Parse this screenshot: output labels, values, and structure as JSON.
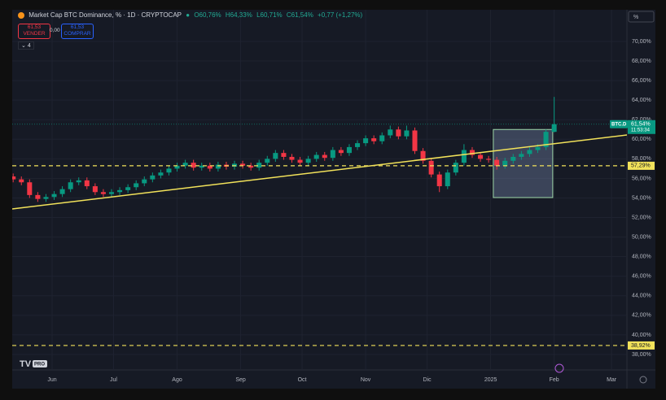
{
  "header": {
    "title": "Market Cap BTC Dominance, % · 1D · CRYPTOCAP",
    "open": "O60,76%",
    "high": "H64,33%",
    "low": "L60,71%",
    "close": "C61,54%",
    "change": "+0,77 (+1,27%)",
    "sell_price": "61,53",
    "sell_label": "VENDER",
    "spread": "0,00",
    "buy_price": "61,53",
    "buy_label": "COMPRAR",
    "indicators_count": "4",
    "scale_unit": "%",
    "logo": "PRO"
  },
  "chart_data": {
    "type": "candlestick",
    "x": [
      -19,
      -15,
      -11,
      -7,
      -3,
      1,
      5,
      9,
      13,
      17,
      21,
      25,
      29,
      33,
      37,
      41,
      45,
      49,
      53,
      57,
      61,
      65,
      69,
      73,
      77,
      81,
      85,
      89,
      93,
      97,
      101,
      105,
      109,
      113,
      117,
      121,
      125,
      129,
      133,
      137,
      141,
      145,
      149,
      153,
      157,
      161,
      165,
      169,
      173,
      177,
      181,
      185,
      189,
      193,
      197,
      201,
      205,
      209,
      213,
      217,
      221,
      225,
      229,
      233,
      237,
      241,
      245
    ],
    "open": [
      56.2,
      55.9,
      55.6,
      54.3,
      53.9,
      54.1,
      54.4,
      54.9,
      55.6,
      55.8,
      55.2,
      54.6,
      54.4,
      54.6,
      54.8,
      55.1,
      55.5,
      55.9,
      56.3,
      56.6,
      57.0,
      57.3,
      57.6,
      57.1,
      57.3,
      57.0,
      57.4,
      57.2,
      57.5,
      57.3,
      57.1,
      57.6,
      58.0,
      58.6,
      58.2,
      57.9,
      57.6,
      58.0,
      58.4,
      58.1,
      58.9,
      58.6,
      59.2,
      59.6,
      60.1,
      59.8,
      60.4,
      61.0,
      60.3,
      60.9,
      58.8,
      57.8,
      56.4,
      55.2,
      56.6,
      57.6,
      58.9,
      58.4,
      58.0,
      57.9,
      57.3,
      57.8,
      58.2,
      58.5,
      58.9,
      59.2,
      60.76
    ],
    "high": [
      56.5,
      56.2,
      55.9,
      54.6,
      54.4,
      54.7,
      55.2,
      55.9,
      56.1,
      56.1,
      55.5,
      54.9,
      54.9,
      55.1,
      55.4,
      55.8,
      56.2,
      56.6,
      56.9,
      57.3,
      57.6,
      57.9,
      57.9,
      57.6,
      57.6,
      57.7,
      57.7,
      57.8,
      57.8,
      57.6,
      57.9,
      58.3,
      58.9,
      58.9,
      58.5,
      58.2,
      58.3,
      58.7,
      58.7,
      59.2,
      59.2,
      59.5,
      59.9,
      60.4,
      60.4,
      60.7,
      61.4,
      61.3,
      61.4,
      61.2,
      59.1,
      58.1,
      56.7,
      56.9,
      57.9,
      59.5,
      59.2,
      58.7,
      58.3,
      58.2,
      58.1,
      58.5,
      58.8,
      59.2,
      59.5,
      61.0,
      64.33
    ],
    "low": [
      55.6,
      55.3,
      54.0,
      53.6,
      53.6,
      53.8,
      54.1,
      54.6,
      55.3,
      54.9,
      54.3,
      54.1,
      54.1,
      54.3,
      54.5,
      54.8,
      55.2,
      55.6,
      56.0,
      56.3,
      56.7,
      57.0,
      56.8,
      56.8,
      56.7,
      56.7,
      56.9,
      56.9,
      57.0,
      56.8,
      56.8,
      57.3,
      57.7,
      57.9,
      57.6,
      57.3,
      57.3,
      57.7,
      57.8,
      57.8,
      58.3,
      58.3,
      58.9,
      59.3,
      59.5,
      59.5,
      60.1,
      60.0,
      60.0,
      58.5,
      57.5,
      56.1,
      54.6,
      54.9,
      56.3,
      57.3,
      58.1,
      57.7,
      57.6,
      56.9,
      57.0,
      57.5,
      57.9,
      58.2,
      58.6,
      58.9,
      60.71
    ],
    "close": [
      55.9,
      55.6,
      54.3,
      53.9,
      54.1,
      54.4,
      54.9,
      55.6,
      55.8,
      55.2,
      54.6,
      54.4,
      54.6,
      54.8,
      55.1,
      55.5,
      55.9,
      56.3,
      56.6,
      57.0,
      57.3,
      57.6,
      57.1,
      57.3,
      57.0,
      57.4,
      57.2,
      57.5,
      57.3,
      57.1,
      57.6,
      58.0,
      58.6,
      58.2,
      57.9,
      57.6,
      58.0,
      58.4,
      58.1,
      58.9,
      58.6,
      59.2,
      59.6,
      60.1,
      59.8,
      60.4,
      61.0,
      60.3,
      60.9,
      58.8,
      57.8,
      56.4,
      55.2,
      56.6,
      57.6,
      58.9,
      58.4,
      58.0,
      57.9,
      57.3,
      57.8,
      58.2,
      58.5,
      58.9,
      59.2,
      60.76,
      61.54
    ],
    "up_color": "#089981",
    "down_color": "#f23645",
    "xlim": [
      -19.47,
      280.5
    ],
    "xticks": [
      {
        "value": 0,
        "label": "Jun"
      },
      {
        "value": 30,
        "label": "Jul"
      },
      {
        "value": 61,
        "label": "Ago"
      },
      {
        "value": 92,
        "label": "Sep"
      },
      {
        "value": 122,
        "label": "Oct"
      },
      {
        "value": 153,
        "label": "Nov"
      },
      {
        "value": 183,
        "label": "Dic"
      },
      {
        "value": 214,
        "label": "2025"
      },
      {
        "value": 245,
        "label": "Feb"
      },
      {
        "value": 273,
        "label": "Mar"
      }
    ],
    "ylim": [
      36.42,
      73.24
    ],
    "yticks": [
      {
        "value": 38,
        "label": "38,00%"
      },
      {
        "value": 40,
        "label": "40,00%"
      },
      {
        "value": 42,
        "label": "42,00%"
      },
      {
        "value": 44,
        "label": "44,00%"
      },
      {
        "value": 46,
        "label": "46,00%"
      },
      {
        "value": 48,
        "label": "48,00%"
      },
      {
        "value": 50,
        "label": "50,00%"
      },
      {
        "value": 52,
        "label": "52,00%"
      },
      {
        "value": 54,
        "label": "54,00%"
      },
      {
        "value": 56,
        "label": "56,00%"
      },
      {
        "value": 58,
        "label": "58,00%"
      },
      {
        "value": 60,
        "label": "60,00%"
      },
      {
        "value": 62,
        "label": "62,00%"
      },
      {
        "value": 64,
        "label": "64,00%"
      },
      {
        "value": 66,
        "label": "66,00%"
      },
      {
        "value": 68,
        "label": "68,00%"
      },
      {
        "value": 70,
        "label": "70,00%"
      }
    ],
    "grid": true,
    "last_price": {
      "symbol": "BTC.D",
      "value": 61.54,
      "label": "61,54%",
      "countdown": "11:53:34",
      "color": "#089981"
    },
    "horizontal_lines": [
      {
        "value": 57.29,
        "label": "57,29%",
        "color": "#f2e25a"
      },
      {
        "value": 38.92,
        "label": "38,92%",
        "color": "#f2e25a"
      }
    ],
    "trendline": {
      "x": [
        -19.47,
        280.5
      ],
      "y": [
        52.88,
        60.44
      ],
      "color": "#f2e25a"
    },
    "rectangle": {
      "x": [
        215.3,
        244.3
      ],
      "y": [
        54.04,
        61.0
      ],
      "color": "#9fd8a8"
    }
  }
}
